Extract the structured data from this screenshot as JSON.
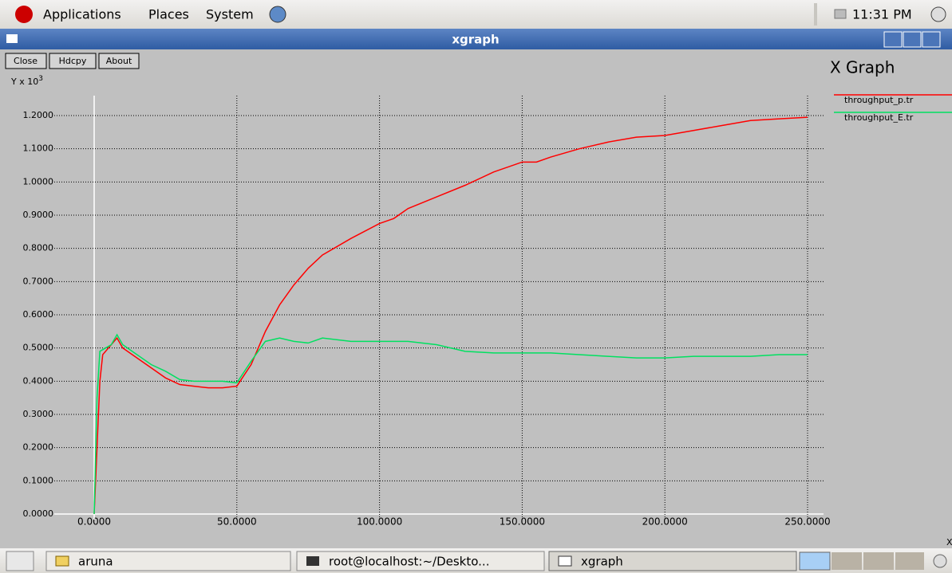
{
  "top_panel": {
    "menus": [
      "Applications",
      "Places",
      "System"
    ],
    "clock": "11:31 PM"
  },
  "window": {
    "title": "xgraph",
    "buttons": [
      "Close",
      "Hdcpy",
      "About"
    ]
  },
  "chart_data": {
    "type": "line",
    "title": "X Graph",
    "y_label": {
      "text": "Y x 10",
      "exponent": "3"
    },
    "x_label": "X",
    "grid": true,
    "legend": "top-right",
    "xlim": [
      0,
      250
    ],
    "ylim": [
      0,
      1.2
    ],
    "xticks": [
      {
        "value": 0,
        "label": "0.0000"
      },
      {
        "value": 50,
        "label": "50.0000"
      },
      {
        "value": 100,
        "label": "100.0000"
      },
      {
        "value": 150,
        "label": "150.0000"
      },
      {
        "value": 200,
        "label": "200.0000"
      },
      {
        "value": 250,
        "label": "250.0000"
      }
    ],
    "yticks": [
      {
        "value": 0,
        "label": "0.0000"
      },
      {
        "value": 0.1,
        "label": "0.1000"
      },
      {
        "value": 0.2,
        "label": "0.2000"
      },
      {
        "value": 0.3,
        "label": "0.3000"
      },
      {
        "value": 0.4,
        "label": "0.4000"
      },
      {
        "value": 0.5,
        "label": "0.5000"
      },
      {
        "value": 0.6,
        "label": "0.6000"
      },
      {
        "value": 0.7,
        "label": "0.7000"
      },
      {
        "value": 0.8,
        "label": "0.8000"
      },
      {
        "value": 0.9,
        "label": "0.9000"
      },
      {
        "value": 1.0,
        "label": "1.0000"
      },
      {
        "value": 1.1,
        "label": "1.1000"
      },
      {
        "value": 1.2,
        "label": "1.2000"
      }
    ],
    "series": [
      {
        "name": "throughput_p.tr",
        "color": "#ff0000",
        "x": [
          0,
          2,
          3,
          5,
          8,
          10,
          15,
          20,
          25,
          30,
          35,
          40,
          45,
          50,
          55,
          60,
          65,
          70,
          75,
          80,
          90,
          100,
          105,
          110,
          120,
          130,
          140,
          150,
          155,
          160,
          170,
          180,
          190,
          200,
          210,
          220,
          230,
          240,
          250
        ],
        "values": [
          0,
          0.4,
          0.48,
          0.5,
          0.53,
          0.5,
          0.47,
          0.44,
          0.41,
          0.39,
          0.385,
          0.38,
          0.38,
          0.385,
          0.45,
          0.55,
          0.63,
          0.69,
          0.74,
          0.78,
          0.83,
          0.875,
          0.89,
          0.92,
          0.955,
          0.99,
          1.03,
          1.06,
          1.06,
          1.075,
          1.1,
          1.12,
          1.135,
          1.14,
          1.155,
          1.17,
          1.185,
          1.19,
          1.195
        ]
      },
      {
        "name": "throughput_E.tr",
        "color": "#00e060",
        "x": [
          0,
          1,
          2,
          4,
          6,
          8,
          10,
          15,
          20,
          25,
          30,
          35,
          40,
          45,
          50,
          55,
          60,
          65,
          70,
          75,
          80,
          90,
          100,
          110,
          120,
          130,
          140,
          150,
          160,
          170,
          180,
          190,
          200,
          210,
          220,
          230,
          240,
          250
        ],
        "values": [
          0,
          0.35,
          0.49,
          0.5,
          0.51,
          0.54,
          0.51,
          0.48,
          0.45,
          0.43,
          0.405,
          0.4,
          0.4,
          0.4,
          0.395,
          0.46,
          0.52,
          0.53,
          0.52,
          0.515,
          0.53,
          0.52,
          0.52,
          0.52,
          0.51,
          0.49,
          0.485,
          0.485,
          0.485,
          0.48,
          0.475,
          0.47,
          0.47,
          0.475,
          0.475,
          0.475,
          0.48,
          0.48
        ]
      }
    ]
  },
  "taskbar": {
    "items": [
      "aruna",
      "root@localhost:~/Deskto...",
      "xgraph"
    ]
  }
}
